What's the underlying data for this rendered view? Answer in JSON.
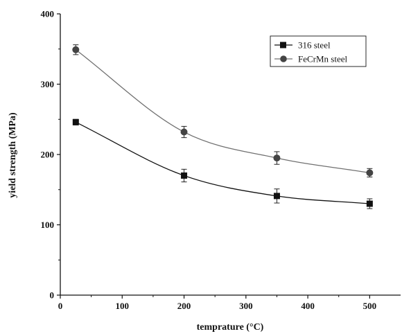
{
  "chart_data": {
    "type": "scatter",
    "title": "",
    "xlabel": "temprature (°C)",
    "ylabel": "yield strength (MPa)",
    "xlim": [
      0,
      550
    ],
    "ylim": [
      0,
      400
    ],
    "xticks": [
      "0",
      "100",
      "200",
      "300",
      "400",
      "500"
    ],
    "yticks": [
      "0",
      "100",
      "200",
      "300",
      "400"
    ],
    "grid": false,
    "legend_position": "top-right",
    "series": [
      {
        "name": "316 steel",
        "marker": "square",
        "color": "#111111",
        "x": [
          25,
          200,
          350,
          500
        ],
        "y": [
          246,
          170,
          141,
          130
        ],
        "error": [
          4,
          9,
          10,
          7
        ],
        "fit_line": true
      },
      {
        "name": "FeCrMn steel",
        "marker": "circle",
        "color": "#444444",
        "line_color": "#707070",
        "x": [
          25,
          200,
          350,
          500
        ],
        "y": [
          349,
          232,
          195,
          174
        ],
        "error": [
          7,
          8,
          9,
          6
        ],
        "fit_line": true
      }
    ]
  }
}
